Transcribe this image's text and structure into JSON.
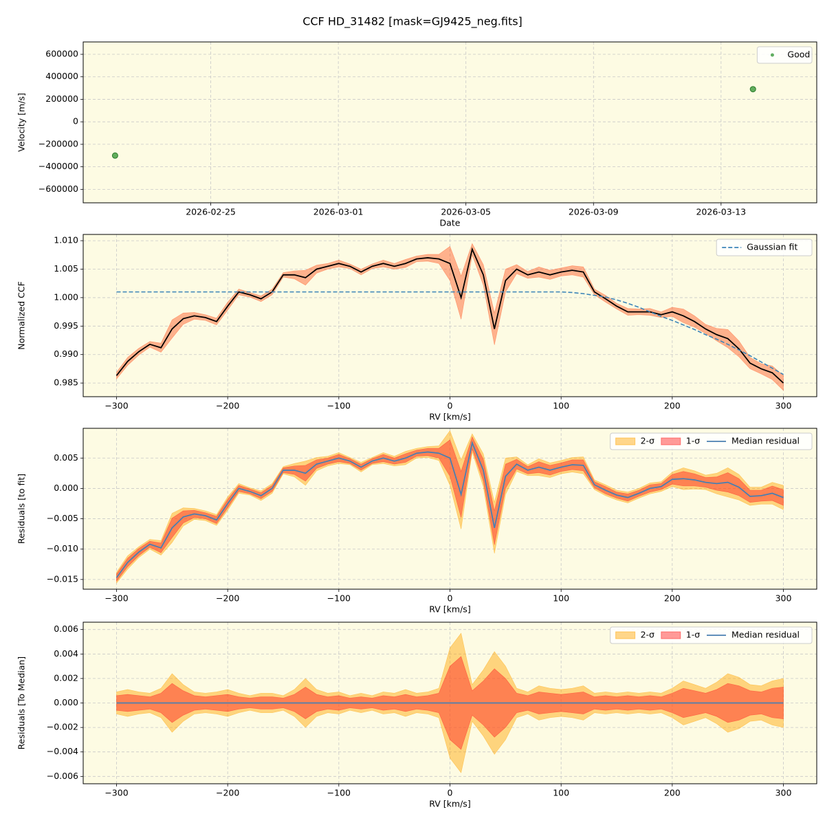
{
  "title": "CCF HD_31482 [mask=GJ9425_neg.fits]",
  "chart_data": [
    {
      "type": "scatter",
      "xlabel": "Date",
      "ylabel": "Velocity [m/s]",
      "background": "#fdfbe3",
      "grid": true,
      "legend": "upper right",
      "x": [
        "2026-02-22",
        "2026-03-14"
      ],
      "series": [
        {
          "name": "Good",
          "color": "#3a9a3a",
          "values": [
            -300000,
            290000
          ]
        }
      ],
      "xlim": [
        "2026-02-21",
        "2026-03-16"
      ],
      "xticks": [
        "2026-02-25",
        "2026-03-01",
        "2026-03-05",
        "2026-03-09",
        "2026-03-13"
      ],
      "ylim": [
        -720000,
        710000
      ],
      "yticks": [
        {
          "value": -600000,
          "label": "−600000"
        },
        {
          "value": -400000,
          "label": "−400000"
        },
        {
          "value": -200000,
          "label": "−200000"
        },
        0,
        200000,
        400000,
        600000
      ]
    },
    {
      "type": "line",
      "xlabel": "RV [km/s]",
      "ylabel": "Normalized CCF",
      "background": "#fdfbe3",
      "grid": true,
      "legend": "upper right",
      "x": [
        -300,
        -290,
        -280,
        -270,
        -260,
        -250,
        -240,
        -230,
        -220,
        -210,
        -200,
        -190,
        -180,
        -170,
        -160,
        -150,
        -140,
        -130,
        -120,
        -110,
        -100,
        -90,
        -80,
        -70,
        -60,
        -50,
        -40,
        -30,
        -20,
        -10,
        0,
        10,
        20,
        30,
        40,
        50,
        60,
        70,
        80,
        90,
        100,
        110,
        120,
        130,
        140,
        150,
        160,
        170,
        180,
        190,
        200,
        210,
        220,
        230,
        240,
        250,
        260,
        270,
        280,
        290,
        300
      ],
      "series": [
        {
          "type": "band",
          "color": "#ff5722",
          "values": [
            0.0006,
            0.0007,
            0.0006,
            0.0005,
            0.0008,
            0.0016,
            0.001,
            0.0006,
            0.0005,
            0.0006,
            0.0007,
            0.0005,
            0.0004,
            0.0005,
            0.0005,
            0.0004,
            0.0007,
            0.0013,
            0.0007,
            0.0005,
            0.0006,
            0.0004,
            0.0005,
            0.0004,
            0.0006,
            0.0005,
            0.0007,
            0.0005,
            0.0006,
            0.0008,
            0.003,
            0.0038,
            0.001,
            0.0018,
            0.0028,
            0.002,
            0.0008,
            0.0006,
            0.0009,
            0.0008,
            0.0007,
            0.0008,
            0.0009,
            0.0005,
            0.0006,
            0.0005,
            0.0006,
            0.0005,
            0.0006,
            0.0005,
            0.0008,
            0.0012,
            0.001,
            0.0008,
            0.0011,
            0.0016,
            0.0014,
            0.001,
            0.0009,
            0.0012,
            0.0013
          ]
        },
        {
          "color": "#000000",
          "values": [
            0.9863,
            0.9888,
            0.9905,
            0.9918,
            0.9912,
            0.9945,
            0.9963,
            0.9968,
            0.9965,
            0.9958,
            0.9985,
            1.001,
            1.0005,
            0.9998,
            1.001,
            1.004,
            1.004,
            1.0035,
            1.005,
            1.0055,
            1.006,
            1.0055,
            1.0045,
            1.0055,
            1.006,
            1.0055,
            1.006,
            1.0068,
            1.007,
            1.0068,
            1.006,
            1.0,
            1.0085,
            1.004,
            0.9945,
            1.003,
            1.005,
            1.004,
            1.0045,
            1.004,
            1.0045,
            1.0048,
            1.0045,
            1.001,
            0.9998,
            0.9985,
            0.9975,
            0.9975,
            0.9975,
            0.997,
            0.9975,
            0.9968,
            0.9958,
            0.9945,
            0.9935,
            0.9928,
            0.991,
            0.9885,
            0.9875,
            0.9868,
            0.985
          ]
        },
        {
          "name": "Gaussian fit",
          "color": "#3a84b8",
          "dash": true,
          "values": [
            1.001,
            1.001,
            1.001,
            1.001,
            1.001,
            1.001,
            1.001,
            1.001,
            1.001,
            1.001,
            1.001,
            1.001,
            1.001,
            1.001,
            1.001,
            1.001,
            1.001,
            1.001,
            1.001,
            1.001,
            1.001,
            1.001,
            1.001,
            1.001,
            1.001,
            1.001,
            1.001,
            1.001,
            1.001,
            1.001,
            1.001,
            1.001,
            1.001,
            1.001,
            1.001,
            1.001,
            1.001,
            1.001,
            1.001,
            1.001,
            1.001,
            1.0009,
            1.0007,
            1.0004,
            1.0001,
            0.9996,
            0.999,
            0.9983,
            0.9975,
            0.9967,
            0.996,
            0.9952,
            0.9944,
            0.9935,
            0.9927,
            0.9918,
            0.9908,
            0.9898,
            0.9887,
            0.9876,
            0.9865
          ]
        }
      ],
      "xlim": [
        -330,
        330
      ],
      "xticks": [
        {
          "value": -300,
          "label": "−300"
        },
        {
          "value": -200,
          "label": "−200"
        },
        {
          "value": -100,
          "label": "−100"
        },
        0,
        100,
        200,
        300
      ],
      "ylim": [
        0.9826,
        1.0111
      ],
      "yticks": [
        0.985,
        {
          "value": 0.99,
          "label": "0.990"
        },
        0.995,
        {
          "value": 1,
          "label": "1.000"
        },
        1.005,
        {
          "value": 1.01,
          "label": "1.010"
        }
      ]
    },
    {
      "type": "line",
      "xlabel": "RV [km/s]",
      "ylabel": "Residuals [to fit]",
      "background": "#fdfbe3",
      "grid": true,
      "legend": "upper right",
      "x": [
        -300,
        -290,
        -280,
        -270,
        -260,
        -250,
        -240,
        -230,
        -220,
        -210,
        -200,
        -190,
        -180,
        -170,
        -160,
        -150,
        -140,
        -130,
        -120,
        -110,
        -100,
        -90,
        -80,
        -70,
        -60,
        -50,
        -40,
        -30,
        -20,
        -10,
        0,
        10,
        20,
        30,
        40,
        50,
        60,
        70,
        80,
        90,
        100,
        110,
        120,
        130,
        140,
        150,
        160,
        170,
        180,
        190,
        200,
        210,
        220,
        230,
        240,
        250,
        260,
        270,
        280,
        290,
        300
      ],
      "series": [
        {
          "name": "2-σ",
          "type": "band",
          "color": "#ffa500",
          "values": [
            0.0009,
            0.0011,
            0.0009,
            0.0008,
            0.0012,
            0.0024,
            0.0015,
            0.0009,
            0.0008,
            0.0009,
            0.0011,
            0.0008,
            0.0006,
            0.0008,
            0.0008,
            0.0006,
            0.0011,
            0.002,
            0.0011,
            0.0008,
            0.0009,
            0.0006,
            0.0008,
            0.0006,
            0.0009,
            0.0008,
            0.0011,
            0.0008,
            0.0009,
            0.0012,
            0.0045,
            0.0057,
            0.0015,
            0.0027,
            0.0042,
            0.003,
            0.0012,
            0.0009,
            0.0014,
            0.0012,
            0.0011,
            0.0012,
            0.0014,
            0.0008,
            0.0009,
            0.0008,
            0.0009,
            0.0008,
            0.0009,
            0.0008,
            0.0012,
            0.0018,
            0.0015,
            0.0012,
            0.0017,
            0.0024,
            0.0021,
            0.0015,
            0.0014,
            0.0018,
            0.002
          ]
        },
        {
          "name": "1-σ",
          "type": "band",
          "color": "#ff2020",
          "values": [
            0.0006,
            0.0007,
            0.0006,
            0.0005,
            0.0008,
            0.0016,
            0.001,
            0.0006,
            0.0005,
            0.0006,
            0.0007,
            0.0005,
            0.0004,
            0.0005,
            0.0005,
            0.0004,
            0.0007,
            0.0013,
            0.0007,
            0.0005,
            0.0006,
            0.0004,
            0.0005,
            0.0004,
            0.0006,
            0.0005,
            0.0007,
            0.0005,
            0.0006,
            0.0008,
            0.003,
            0.0038,
            0.001,
            0.0018,
            0.0028,
            0.002,
            0.0008,
            0.0006,
            0.0009,
            0.0008,
            0.0007,
            0.0008,
            0.0009,
            0.0005,
            0.0006,
            0.0005,
            0.0006,
            0.0005,
            0.0006,
            0.0005,
            0.0008,
            0.0012,
            0.001,
            0.0008,
            0.0011,
            0.0016,
            0.0014,
            0.001,
            0.0009,
            0.0012,
            0.0013
          ]
        },
        {
          "name": "Median residual",
          "color": "#4a7fb0",
          "values": [
            -0.0147,
            -0.0122,
            -0.0105,
            -0.0092,
            -0.0098,
            -0.0065,
            -0.0047,
            -0.0042,
            -0.0045,
            -0.0052,
            -0.0025,
            0,
            -0.0005,
            -0.0012,
            0,
            0.003,
            0.003,
            0.0025,
            0.004,
            0.0045,
            0.005,
            0.0045,
            0.0035,
            0.0045,
            0.005,
            0.0045,
            0.005,
            0.0058,
            0.006,
            0.0058,
            0.005,
            -0.001,
            0.0075,
            0.003,
            -0.0065,
            0.002,
            0.004,
            0.003,
            0.0035,
            0.003,
            0.0035,
            0.0039,
            0.0038,
            0.0006,
            -0.0003,
            -0.0011,
            -0.0015,
            -0.0008,
            0,
            0.0003,
            0.0015,
            0.0016,
            0.0014,
            0.001,
            0.0008,
            0.001,
            0.0002,
            -0.0013,
            -0.0012,
            -0.0008,
            -0.0015
          ]
        }
      ],
      "xlim": [
        -330,
        330
      ],
      "xticks": [
        {
          "value": -300,
          "label": "−300"
        },
        {
          "value": -200,
          "label": "−200"
        },
        {
          "value": -100,
          "label": "−100"
        },
        0,
        100,
        200,
        300
      ],
      "ylim": [
        -0.0166,
        0.0099
      ],
      "yticks": [
        {
          "value": -0.015,
          "label": "−0.015"
        },
        {
          "value": -0.01,
          "label": "−0.010"
        },
        {
          "value": -0.005,
          "label": "−0.005"
        },
        {
          "value": 0,
          "label": "0.000"
        },
        0.005
      ]
    },
    {
      "type": "line",
      "xlabel": "RV [km/s]",
      "ylabel": "Residuals [To Median]",
      "background": "#fdfbe3",
      "grid": true,
      "legend": "upper right",
      "x": [
        -300,
        -290,
        -280,
        -270,
        -260,
        -250,
        -240,
        -230,
        -220,
        -210,
        -200,
        -190,
        -180,
        -170,
        -160,
        -150,
        -140,
        -130,
        -120,
        -110,
        -100,
        -90,
        -80,
        -70,
        -60,
        -50,
        -40,
        -30,
        -20,
        -10,
        0,
        10,
        20,
        30,
        40,
        50,
        60,
        70,
        80,
        90,
        100,
        110,
        120,
        130,
        140,
        150,
        160,
        170,
        180,
        190,
        200,
        210,
        220,
        230,
        240,
        250,
        260,
        270,
        280,
        290,
        300
      ],
      "series": [
        {
          "name": "2-σ",
          "type": "band",
          "color": "#ffa500",
          "values": [
            0.0009,
            0.0011,
            0.0009,
            0.0008,
            0.0012,
            0.0024,
            0.0015,
            0.0009,
            0.0008,
            0.0009,
            0.0011,
            0.0008,
            0.0006,
            0.0008,
            0.0008,
            0.0006,
            0.0011,
            0.002,
            0.0011,
            0.0008,
            0.0009,
            0.0006,
            0.0008,
            0.0006,
            0.0009,
            0.0008,
            0.0011,
            0.0008,
            0.0009,
            0.0012,
            0.0045,
            0.0057,
            0.0015,
            0.0027,
            0.0042,
            0.003,
            0.0012,
            0.0009,
            0.0014,
            0.0012,
            0.0011,
            0.0012,
            0.0014,
            0.0008,
            0.0009,
            0.0008,
            0.0009,
            0.0008,
            0.0009,
            0.0008,
            0.0012,
            0.0018,
            0.0015,
            0.0012,
            0.0017,
            0.0024,
            0.0021,
            0.0015,
            0.0014,
            0.0018,
            0.002
          ]
        },
        {
          "name": "1-σ",
          "type": "band",
          "color": "#ff2020",
          "values": [
            0.0006,
            0.0007,
            0.0006,
            0.0005,
            0.0008,
            0.0016,
            0.001,
            0.0006,
            0.0005,
            0.0006,
            0.0007,
            0.0005,
            0.0004,
            0.0005,
            0.0005,
            0.0004,
            0.0007,
            0.0013,
            0.0007,
            0.0005,
            0.0006,
            0.0004,
            0.0005,
            0.0004,
            0.0006,
            0.0005,
            0.0007,
            0.0005,
            0.0006,
            0.0008,
            0.003,
            0.0038,
            0.001,
            0.0018,
            0.0028,
            0.002,
            0.0008,
            0.0006,
            0.0009,
            0.0008,
            0.0007,
            0.0008,
            0.0009,
            0.0005,
            0.0006,
            0.0005,
            0.0006,
            0.0005,
            0.0006,
            0.0005,
            0.0008,
            0.0012,
            0.001,
            0.0008,
            0.0011,
            0.0016,
            0.0014,
            0.001,
            0.0009,
            0.0012,
            0.0013
          ]
        },
        {
          "name": "Median residual",
          "color": "#4a7fb0",
          "values": [
            0,
            0,
            0,
            0,
            0,
            0,
            0,
            0,
            0,
            0,
            0,
            0,
            0,
            0,
            0,
            0,
            0,
            0,
            0,
            0,
            0,
            0,
            0,
            0,
            0,
            0,
            0,
            0,
            0,
            0,
            0,
            0,
            0,
            0,
            0,
            0,
            0,
            0,
            0,
            0,
            0,
            0,
            0,
            0,
            0,
            0,
            0,
            0,
            0,
            0,
            0,
            0,
            0,
            0,
            0,
            0,
            0,
            0,
            0,
            0,
            0
          ]
        }
      ],
      "xlim": [
        -330,
        330
      ],
      "xticks": [
        {
          "value": -300,
          "label": "−300"
        },
        {
          "value": -200,
          "label": "−200"
        },
        {
          "value": -100,
          "label": "−100"
        },
        0,
        100,
        200,
        300
      ],
      "ylim": [
        -0.0066,
        0.0066
      ],
      "yticks": [
        {
          "value": -0.006,
          "label": "−0.006"
        },
        {
          "value": -0.004,
          "label": "−0.004"
        },
        {
          "value": -0.002,
          "label": "−0.002"
        },
        {
          "value": 0,
          "label": "0.000"
        },
        0.002,
        0.004,
        0.006
      ]
    }
  ]
}
